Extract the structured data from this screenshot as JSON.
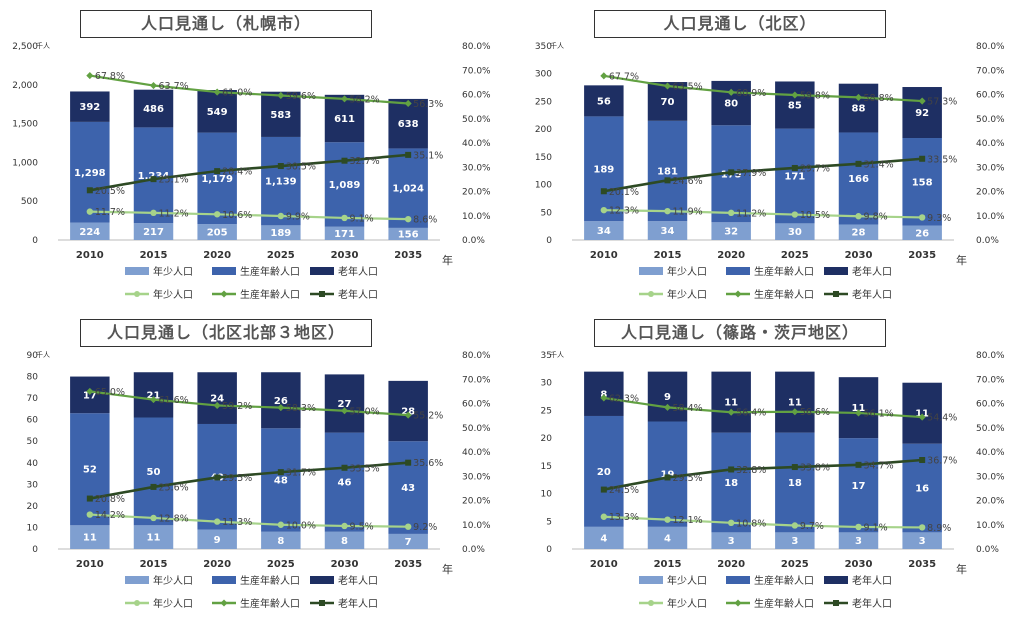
{
  "colors": {
    "youth_bar": "#7f9fd0",
    "working_bar": "#3d63ac",
    "elderly_bar": "#1e2f63",
    "youth_line": "#a6d38a",
    "working_line": "#62a142",
    "elderly_line": "#2d4a24"
  },
  "legend": {
    "bar_youth": "年少人口",
    "bar_working": "生産年齢人口",
    "bar_elderly": "老年人口",
    "line_youth": "年少人口",
    "line_working": "生産年齢人口",
    "line_elderly": "老年人口"
  },
  "chart_data": [
    {
      "type": "bar",
      "title": "人口見通し（札幌市）",
      "unit_label": "千人",
      "x_suffix": "年",
      "categories": [
        "2010",
        "2015",
        "2020",
        "2025",
        "2030",
        "2035"
      ],
      "ylim": [
        0,
        2500
      ],
      "yticks": [
        0,
        500,
        1000,
        1500,
        2000,
        2500
      ],
      "ytick_labels": [
        "0",
        "500",
        "1,000",
        "1,500",
        "2,000",
        "2,500"
      ],
      "y2lim": [
        0,
        80
      ],
      "y2ticks": [
        0,
        10,
        20,
        30,
        40,
        50,
        60,
        70,
        80
      ],
      "y2tick_labels": [
        "0.0%",
        "10.0%",
        "20.0%",
        "30.0%",
        "40.0%",
        "50.0%",
        "60.0%",
        "70.0%",
        "80.0%"
      ],
      "series": [
        {
          "name": "年少人口",
          "kind": "bar",
          "values": [
            224,
            217,
            205,
            189,
            171,
            156
          ],
          "labels": [
            "224",
            "217",
            "205",
            "189",
            "171",
            "156"
          ]
        },
        {
          "name": "生産年齢人口",
          "kind": "bar",
          "values": [
            1298,
            1234,
            1179,
            1139,
            1089,
            1024
          ],
          "labels": [
            "1,298",
            "1,234",
            "1,179",
            "1,139",
            "1,089",
            "1,024"
          ]
        },
        {
          "name": "老年人口",
          "kind": "bar",
          "values": [
            392,
            486,
            549,
            583,
            611,
            638
          ],
          "labels": [
            "392",
            "486",
            "549",
            "583",
            "611",
            "638"
          ]
        },
        {
          "name": "年少人口",
          "kind": "line",
          "values": [
            11.7,
            11.2,
            10.6,
            9.9,
            9.1,
            8.6
          ],
          "labels": [
            "11.7%",
            "11.2%",
            "10.6%",
            "9.9%",
            "9.1%",
            "8.6%"
          ]
        },
        {
          "name": "生産年齢人口",
          "kind": "line",
          "values": [
            67.8,
            63.7,
            61.0,
            59.6,
            58.2,
            56.3
          ],
          "labels": [
            "67.8%",
            "63.7%",
            "61.0%",
            "59.6%",
            "58.2%",
            "56.3%"
          ]
        },
        {
          "name": "老年人口",
          "kind": "line",
          "values": [
            20.5,
            25.1,
            28.4,
            30.5,
            32.7,
            35.1
          ],
          "labels": [
            "20.5%",
            "25.1%",
            "28.4%",
            "30.5%",
            "32.7%",
            "35.1%"
          ]
        }
      ]
    },
    {
      "type": "bar",
      "title": "人口見通し（北区）",
      "unit_label": "千人",
      "x_suffix": "年",
      "categories": [
        "2010",
        "2015",
        "2020",
        "2025",
        "2030",
        "2035"
      ],
      "ylim": [
        0,
        350
      ],
      "yticks": [
        0,
        50,
        100,
        150,
        200,
        250,
        300,
        350
      ],
      "ytick_labels": [
        "0",
        "50",
        "100",
        "150",
        "200",
        "250",
        "300",
        "350"
      ],
      "y2lim": [
        0,
        80
      ],
      "y2ticks": [
        0,
        10,
        20,
        30,
        40,
        50,
        60,
        70,
        80
      ],
      "y2tick_labels": [
        "0.0%",
        "10.0%",
        "20.0%",
        "30.0%",
        "40.0%",
        "50.0%",
        "60.0%",
        "70.0%",
        "80.0%"
      ],
      "series": [
        {
          "name": "年少人口",
          "kind": "bar",
          "values": [
            34,
            34,
            32,
            30,
            28,
            26
          ],
          "labels": [
            "34",
            "34",
            "32",
            "30",
            "28",
            "26"
          ]
        },
        {
          "name": "生産年齢人口",
          "kind": "bar",
          "values": [
            189,
            181,
            175,
            171,
            166,
            158
          ],
          "labels": [
            "189",
            "181",
            "175",
            "171",
            "166",
            "158"
          ]
        },
        {
          "name": "老年人口",
          "kind": "bar",
          "values": [
            56,
            70,
            80,
            85,
            88,
            92
          ],
          "labels": [
            "56",
            "70",
            "80",
            "85",
            "88",
            "92"
          ]
        },
        {
          "name": "年少人口",
          "kind": "line",
          "values": [
            12.3,
            11.9,
            11.2,
            10.5,
            9.8,
            9.3
          ],
          "labels": [
            "12.3%",
            "11.9%",
            "11.2%",
            "10.5%",
            "9.8%",
            "9.3%"
          ]
        },
        {
          "name": "生産年齢人口",
          "kind": "line",
          "values": [
            67.7,
            63.5,
            60.9,
            59.8,
            58.8,
            57.3
          ],
          "labels": [
            "67.7%",
            "63.5%",
            "60.9%",
            "59.8%",
            "58.8%",
            "57.3%"
          ]
        },
        {
          "name": "老年人口",
          "kind": "line",
          "values": [
            20.1,
            24.6,
            27.9,
            29.7,
            31.4,
            33.5
          ],
          "labels": [
            "20.1%",
            "24.6%",
            "27.9%",
            "29.7%",
            "31.4%",
            "33.5%"
          ]
        }
      ]
    },
    {
      "type": "bar",
      "title": "人口見通し（北区北部３地区）",
      "unit_label": "千人",
      "x_suffix": "年",
      "categories": [
        "2010",
        "2015",
        "2020",
        "2025",
        "2030",
        "2035"
      ],
      "ylim": [
        0,
        90
      ],
      "yticks": [
        0,
        10,
        20,
        30,
        40,
        50,
        60,
        70,
        80,
        90
      ],
      "ytick_labels": [
        "0",
        "10",
        "20",
        "30",
        "40",
        "50",
        "60",
        "70",
        "80",
        "90"
      ],
      "y2lim": [
        0,
        80
      ],
      "y2ticks": [
        0,
        10,
        20,
        30,
        40,
        50,
        60,
        70,
        80
      ],
      "y2tick_labels": [
        "0.0%",
        "10.0%",
        "20.0%",
        "30.0%",
        "40.0%",
        "50.0%",
        "60.0%",
        "70.0%",
        "80.0%"
      ],
      "series": [
        {
          "name": "年少人口",
          "kind": "bar",
          "values": [
            11,
            11,
            9,
            8,
            8,
            7
          ],
          "labels": [
            "11",
            "11",
            "9",
            "8",
            "8",
            "7"
          ]
        },
        {
          "name": "生産年齢人口",
          "kind": "bar",
          "values": [
            52,
            50,
            49,
            48,
            46,
            43
          ],
          "labels": [
            "52",
            "50",
            "49",
            "48",
            "46",
            "43"
          ]
        },
        {
          "name": "老年人口",
          "kind": "bar",
          "values": [
            17,
            21,
            24,
            26,
            27,
            28
          ],
          "labels": [
            "17",
            "21",
            "24",
            "26",
            "27",
            "28"
          ]
        },
        {
          "name": "年少人口",
          "kind": "line",
          "values": [
            14.2,
            12.8,
            11.3,
            10.0,
            9.5,
            9.2
          ],
          "labels": [
            "14.2%",
            "12.8%",
            "11.3%",
            "10.0%",
            "9.5%",
            "9.2%"
          ]
        },
        {
          "name": "生産年齢人口",
          "kind": "line",
          "values": [
            65.0,
            61.6,
            59.2,
            58.3,
            57.0,
            55.2
          ],
          "labels": [
            "65.0%",
            "61.6%",
            "59.2%",
            "58.3%",
            "57.0%",
            "55.2%"
          ]
        },
        {
          "name": "老年人口",
          "kind": "line",
          "values": [
            20.8,
            25.6,
            29.5,
            31.7,
            33.5,
            35.6
          ],
          "labels": [
            "20.8%",
            "25.6%",
            "29.5%",
            "31.7%",
            "33.5%",
            "35.6%"
          ]
        }
      ]
    },
    {
      "type": "bar",
      "title": "人口見通し（篠路・茨戸地区）",
      "unit_label": "千人",
      "x_suffix": "年",
      "categories": [
        "2010",
        "2015",
        "2020",
        "2025",
        "2030",
        "2035"
      ],
      "ylim": [
        0,
        35
      ],
      "yticks": [
        0,
        5,
        10,
        15,
        20,
        25,
        30,
        35
      ],
      "ytick_labels": [
        "0",
        "5",
        "10",
        "15",
        "20",
        "25",
        "30",
        "35"
      ],
      "y2lim": [
        0,
        80
      ],
      "y2ticks": [
        0,
        10,
        20,
        30,
        40,
        50,
        60,
        70,
        80
      ],
      "y2tick_labels": [
        "0.0%",
        "10.0%",
        "20.0%",
        "30.0%",
        "40.0%",
        "50.0%",
        "60.0%",
        "70.0%",
        "80.0%"
      ],
      "series": [
        {
          "name": "年少人口",
          "kind": "bar",
          "values": [
            4,
            4,
            3,
            3,
            3,
            3
          ],
          "labels": [
            "4",
            "4",
            "3",
            "3",
            "3",
            "3"
          ]
        },
        {
          "name": "生産年齢人口",
          "kind": "bar",
          "values": [
            20,
            19,
            18,
            18,
            17,
            16
          ],
          "labels": [
            "20",
            "19",
            "18",
            "18",
            "17",
            "16"
          ]
        },
        {
          "name": "老年人口",
          "kind": "bar",
          "values": [
            8,
            9,
            11,
            11,
            11,
            11
          ],
          "labels": [
            "8",
            "9",
            "11",
            "11",
            "11",
            "11"
          ]
        },
        {
          "name": "年少人口",
          "kind": "line",
          "values": [
            13.3,
            12.1,
            10.8,
            9.7,
            9.1,
            8.9
          ],
          "labels": [
            "13.3%",
            "12.1%",
            "10.8%",
            "9.7%",
            "9.1%",
            "8.9%"
          ]
        },
        {
          "name": "生産年齢人口",
          "kind": "line",
          "values": [
            62.3,
            58.4,
            56.4,
            56.6,
            56.1,
            54.4
          ],
          "labels": [
            "62.3%",
            "58.4%",
            "56.4%",
            "56.6%",
            "56.1%",
            "54.4%"
          ]
        },
        {
          "name": "老年人口",
          "kind": "line",
          "values": [
            24.5,
            29.5,
            32.8,
            33.8,
            34.7,
            36.7
          ],
          "labels": [
            "24.5%",
            "29.5%",
            "32.8%",
            "33.8%",
            "34.7%",
            "36.7%"
          ]
        }
      ]
    }
  ]
}
